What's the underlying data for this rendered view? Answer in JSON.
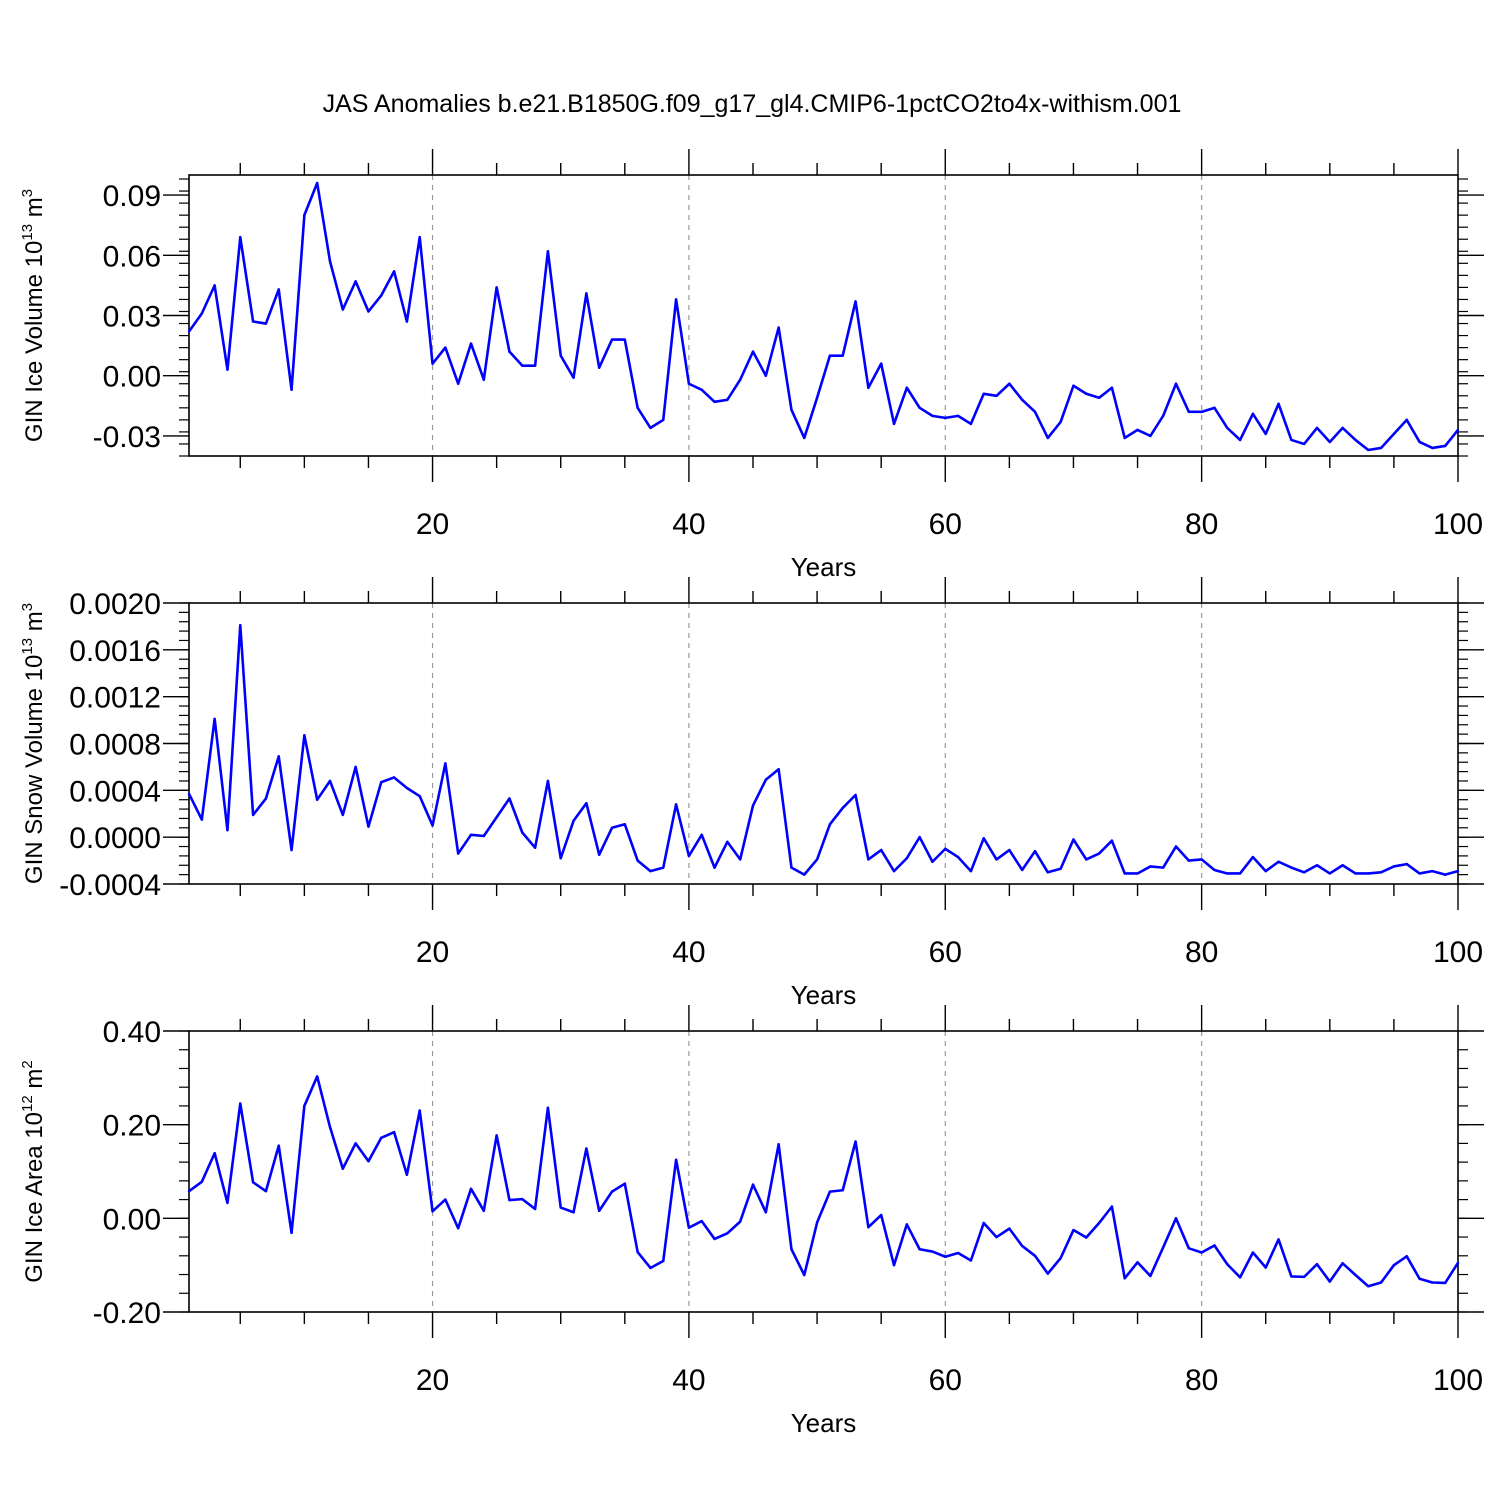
{
  "chart_data": {
    "type": "line",
    "title": "JAS Anomalies b.e21.B1850G.f09_g17_gl4.CMIP6-1pctCO2to4x-withism.001",
    "color": "#0000ff",
    "panels": [
      {
        "ylabel": "GIN Ice Volume 10",
        "ylabel_sup": "13",
        "ylabel_unit": " m",
        "ylabel_unit_sup": "3",
        "xlabel": "Years",
        "xlim": [
          1,
          100
        ],
        "ylim": [
          -0.04,
          0.1
        ],
        "xticks": [
          20,
          40,
          60,
          80,
          100
        ],
        "xtick_labels": [
          "20",
          "40",
          "60",
          "80",
          "100"
        ],
        "yticks": [
          -0.03,
          0.0,
          0.03,
          0.06,
          0.09
        ],
        "ytick_labels": [
          "-0.03",
          "0.00",
          "0.03",
          "0.06",
          "0.09"
        ],
        "y": [
          0.022,
          0.031,
          0.045,
          0.003,
          0.069,
          0.027,
          0.026,
          0.043,
          -0.007,
          0.08,
          0.096,
          0.057,
          0.033,
          0.047,
          0.032,
          0.04,
          0.052,
          0.027,
          0.069,
          0.006,
          0.014,
          -0.004,
          0.016,
          -0.002,
          0.044,
          0.012,
          0.005,
          0.005,
          0.062,
          0.01,
          -0.001,
          0.041,
          0.004,
          0.018,
          0.018,
          -0.016,
          -0.026,
          -0.022,
          0.038,
          -0.004,
          -0.007,
          -0.013,
          -0.012,
          -0.002,
          0.012,
          0.0,
          0.024,
          -0.017,
          -0.031,
          -0.011,
          0.01,
          0.01,
          0.037,
          -0.006,
          0.006,
          -0.024,
          -0.006,
          -0.016,
          -0.02,
          -0.021,
          -0.02,
          -0.024,
          -0.009,
          -0.01,
          -0.004,
          -0.012,
          -0.018,
          -0.031,
          -0.023,
          -0.005,
          -0.009,
          -0.011,
          -0.006,
          -0.031,
          -0.027,
          -0.03,
          -0.02,
          -0.004,
          -0.018,
          -0.018,
          -0.016,
          -0.026,
          -0.032,
          -0.019,
          -0.029,
          -0.014,
          -0.032,
          -0.034,
          -0.026,
          -0.033,
          -0.026,
          -0.032,
          -0.037,
          -0.036,
          -0.029,
          -0.022,
          -0.033,
          -0.036,
          -0.035,
          -0.027
        ]
      },
      {
        "ylabel": "GIN Snow Volume 10",
        "ylabel_sup": "13",
        "ylabel_unit": " m",
        "ylabel_unit_sup": "3",
        "xlabel": "Years",
        "xlim": [
          1,
          100
        ],
        "ylim": [
          -0.0004,
          0.002
        ],
        "xticks": [
          20,
          40,
          60,
          80,
          100
        ],
        "xtick_labels": [
          "20",
          "40",
          "60",
          "80",
          "100"
        ],
        "yticks": [
          -0.0004,
          0.0,
          0.0004,
          0.0008,
          0.0012,
          0.0016,
          0.002
        ],
        "ytick_labels": [
          "-0.0004",
          "0.0000",
          "0.0004",
          "0.0008",
          "0.0012",
          "0.0016",
          "0.0020"
        ],
        "y": [
          0.00037,
          0.00015,
          0.00101,
          6e-05,
          0.00181,
          0.00019,
          0.00033,
          0.00069,
          -0.00011,
          0.00087,
          0.00032,
          0.00048,
          0.00019,
          0.0006,
          9e-05,
          0.00047,
          0.00051,
          0.00042,
          0.00035,
          0.0001,
          0.00063,
          -0.00014,
          2e-05,
          1e-05,
          0.00017,
          0.00033,
          4e-05,
          -9e-05,
          0.00048,
          -0.00018,
          0.00014,
          0.00029,
          -0.00015,
          8e-05,
          0.00011,
          -0.0002,
          -0.00029,
          -0.00026,
          0.00028,
          -0.00016,
          2e-05,
          -0.00026,
          -4e-05,
          -0.00019,
          0.00027,
          0.00049,
          0.00058,
          -0.00026,
          -0.00032,
          -0.00019,
          0.00011,
          0.00025,
          0.00036,
          -0.00019,
          -0.00011,
          -0.00029,
          -0.00018,
          0.0,
          -0.00021,
          -0.0001,
          -0.00017,
          -0.00029,
          -1e-05,
          -0.00019,
          -0.00011,
          -0.00028,
          -0.00012,
          -0.0003,
          -0.00027,
          -2e-05,
          -0.00019,
          -0.00014,
          -3e-05,
          -0.00031,
          -0.00031,
          -0.00025,
          -0.00026,
          -8e-05,
          -0.0002,
          -0.00019,
          -0.00028,
          -0.00031,
          -0.00031,
          -0.00017,
          -0.00029,
          -0.00021,
          -0.00026,
          -0.0003,
          -0.00024,
          -0.00031,
          -0.00024,
          -0.00031,
          -0.00031,
          -0.0003,
          -0.00025,
          -0.00023,
          -0.00031,
          -0.00029,
          -0.00032,
          -0.00029
        ]
      },
      {
        "ylabel": "GIN Ice Area 10",
        "ylabel_sup": "12",
        "ylabel_unit": " m",
        "ylabel_unit_sup": "2",
        "xlabel": "Years",
        "xlim": [
          1,
          100
        ],
        "ylim": [
          -0.2,
          0.4
        ],
        "xticks": [
          20,
          40,
          60,
          80,
          100
        ],
        "xtick_labels": [
          "20",
          "40",
          "60",
          "80",
          "100"
        ],
        "yticks": [
          -0.2,
          0.0,
          0.2,
          0.4
        ],
        "ytick_labels": [
          "-0.20",
          "0.00",
          "0.20",
          "0.40"
        ],
        "y": [
          0.058,
          0.078,
          0.139,
          0.033,
          0.245,
          0.077,
          0.058,
          0.155,
          -0.031,
          0.24,
          0.303,
          0.195,
          0.106,
          0.16,
          0.122,
          0.172,
          0.184,
          0.093,
          0.23,
          0.015,
          0.04,
          -0.021,
          0.063,
          0.016,
          0.177,
          0.039,
          0.041,
          0.02,
          0.236,
          0.023,
          0.013,
          0.149,
          0.016,
          0.057,
          0.074,
          -0.072,
          -0.106,
          -0.091,
          0.125,
          -0.02,
          -0.006,
          -0.044,
          -0.032,
          -0.007,
          0.072,
          0.013,
          0.158,
          -0.066,
          -0.121,
          -0.009,
          0.057,
          0.06,
          0.164,
          -0.019,
          0.007,
          -0.1,
          -0.013,
          -0.066,
          -0.071,
          -0.082,
          -0.074,
          -0.09,
          -0.01,
          -0.04,
          -0.022,
          -0.059,
          -0.08,
          -0.118,
          -0.085,
          -0.025,
          -0.041,
          -0.01,
          0.025,
          -0.128,
          -0.094,
          -0.123,
          -0.062,
          0.0,
          -0.064,
          -0.073,
          -0.058,
          -0.098,
          -0.126,
          -0.073,
          -0.105,
          -0.045,
          -0.124,
          -0.125,
          -0.098,
          -0.135,
          -0.096,
          -0.121,
          -0.145,
          -0.137,
          -0.1,
          -0.081,
          -0.129,
          -0.137,
          -0.138,
          -0.095
        ]
      }
    ]
  }
}
